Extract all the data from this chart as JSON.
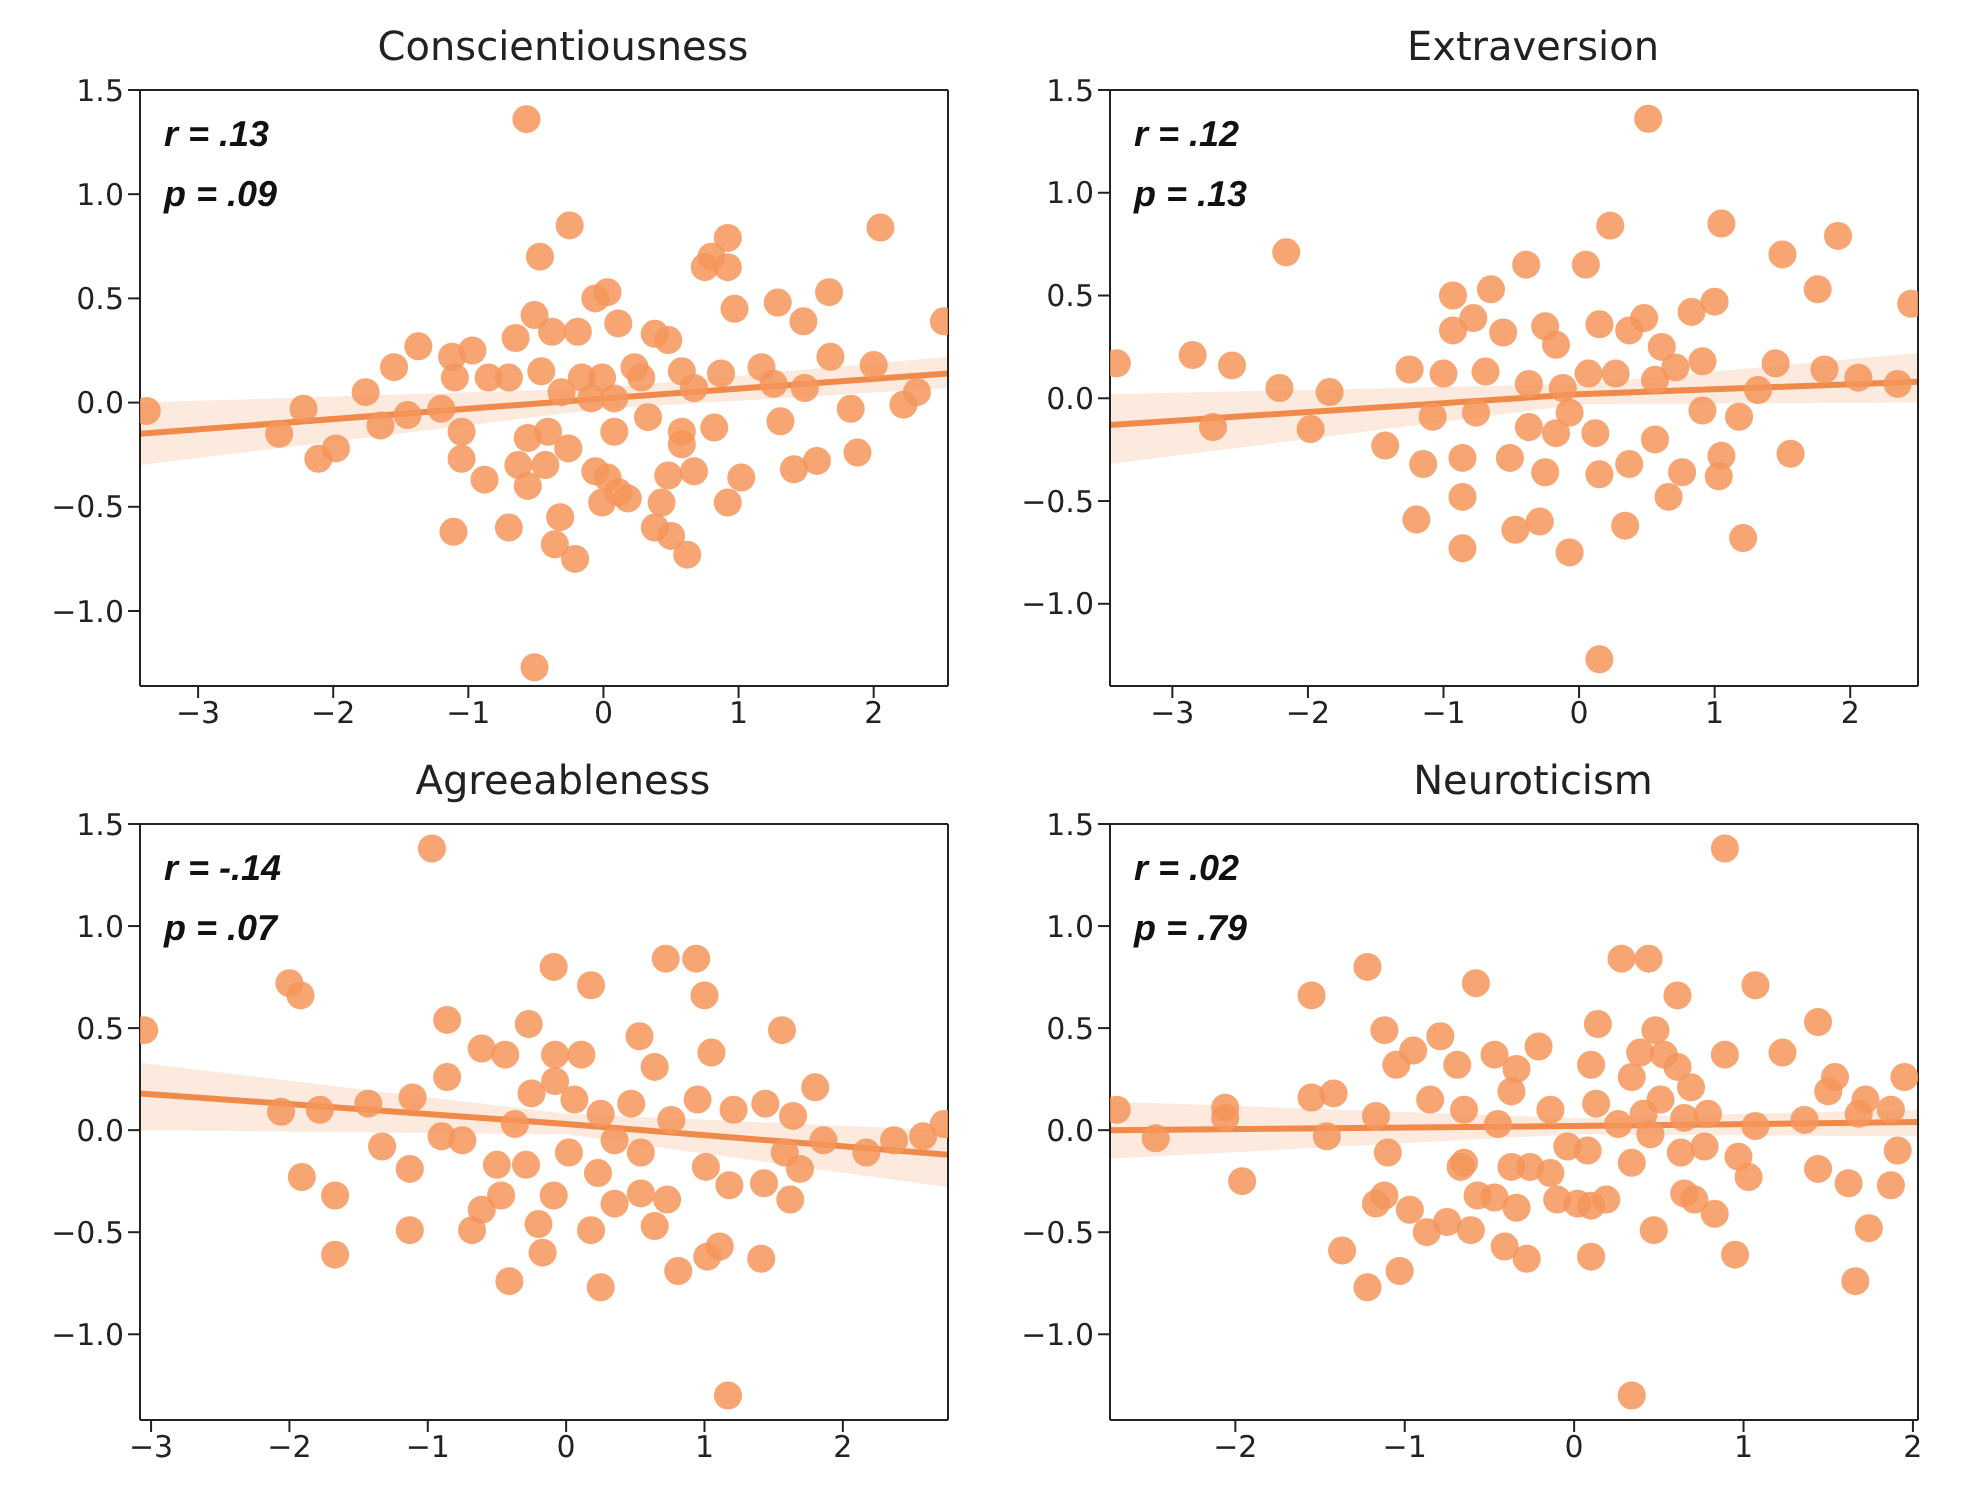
{
  "chart_data": [
    {
      "type": "scatter",
      "title": "Conscientiousness",
      "annotations": [
        "r = .13",
        "p = .09"
      ],
      "xlim": [
        -3.43,
        2.55
      ],
      "ylim": [
        -1.36,
        1.5
      ],
      "xticks": [
        -3,
        -2,
        -1,
        0,
        1,
        2
      ],
      "yticks": [
        {
          "value": -1,
          "label": "−1.0"
        },
        -0.5,
        {
          "value": 0,
          "label": "0.0"
        },
        0.5,
        {
          "value": 1,
          "label": "1.0"
        },
        1.5
      ],
      "series": [
        {
          "marker": "circle",
          "color": "#f4955a",
          "x": [
            -0.57,
            -0.51,
            -0.25,
            -0.47,
            2.05,
            0.92,
            0.8,
            0.75,
            0.92,
            2.52,
            1.67,
            1.29,
            0.97,
            1.48,
            -0.06,
            0.03,
            0.11,
            -0.51,
            -0.38,
            -0.19,
            0.38,
            0.48,
            -1.37,
            -1.55,
            -1.76,
            -2.22,
            -2.4,
            -2.11,
            -1.98,
            -1.65,
            -1.45,
            -3.38,
            -1.12,
            -0.97,
            -1.1,
            -0.85,
            -0.65,
            -0.7,
            -0.46,
            -0.16,
            -0.01,
            0.08,
            0.23,
            0.58,
            0.67,
            0.87,
            1.17,
            1.26,
            1.49,
            1.68,
            2.0,
            1.83,
            2.22,
            2.32,
            1.88,
            1.58,
            1.41,
            1.31,
            1.02,
            0.92,
            0.82,
            0.58,
            0.58,
            0.67,
            0.48,
            0.43,
            0.38,
            0.5,
            0.62,
            0.33,
            0.08,
            -0.06,
            0.03,
            0.11,
            -0.01,
            0.18,
            -0.26,
            -0.41,
            -0.56,
            -0.63,
            -0.56,
            -0.43,
            -0.88,
            -1.05,
            -1.05,
            -1.11,
            -0.7,
            -0.32,
            -0.36,
            -0.21,
            -1.2,
            -0.31,
            -0.09,
            0.28
          ],
          "values": [
            1.36,
            -1.27,
            0.85,
            0.7,
            0.84,
            0.79,
            0.7,
            0.65,
            0.65,
            0.39,
            0.53,
            0.48,
            0.45,
            0.39,
            0.5,
            0.53,
            0.38,
            0.42,
            0.34,
            0.34,
            0.33,
            0.3,
            0.27,
            0.17,
            0.05,
            -0.03,
            -0.15,
            -0.27,
            -0.22,
            -0.11,
            -0.06,
            -0.04,
            0.22,
            0.25,
            0.12,
            0.12,
            0.31,
            0.12,
            0.15,
            0.12,
            0.12,
            0.02,
            0.17,
            0.15,
            0.07,
            0.14,
            0.17,
            0.09,
            0.07,
            0.22,
            0.18,
            -0.03,
            -0.01,
            0.05,
            -0.24,
            -0.28,
            -0.32,
            -0.09,
            -0.36,
            -0.48,
            -0.12,
            -0.14,
            -0.2,
            -0.33,
            -0.35,
            -0.48,
            -0.6,
            -0.64,
            -0.73,
            -0.07,
            -0.14,
            -0.33,
            -0.36,
            -0.43,
            -0.48,
            -0.46,
            -0.22,
            -0.14,
            -0.17,
            -0.3,
            -0.4,
            -0.3,
            -0.37,
            -0.14,
            -0.27,
            -0.62,
            -0.6,
            -0.55,
            -0.68,
            -0.75,
            -0.03,
            0.05,
            0.02,
            0.12
          ]
        },
        {
          "type": "line",
          "color": "#f08a4b",
          "x": [
            -3.43,
            0,
            2.55
          ],
          "values": [
            -0.15,
            0.02,
            0.14
          ],
          "lower": [
            -0.3,
            -0.03,
            0.07
          ],
          "upper": [
            0.0,
            0.07,
            0.22
          ]
        }
      ]
    },
    {
      "type": "scatter",
      "title": "Extraversion",
      "annotations": [
        "r = .12",
        "p = .13"
      ],
      "xlim": [
        -3.46,
        2.5
      ],
      "ylim": [
        -1.4,
        1.5
      ],
      "xticks": [
        -3,
        -2,
        -1,
        0,
        1,
        2
      ],
      "yticks": [
        {
          "value": -1,
          "label": "−1.0"
        },
        -0.5,
        {
          "value": 0,
          "label": "0.0"
        },
        0.5,
        {
          "value": 1,
          "label": "1.0"
        },
        1.5
      ],
      "series": [
        {
          "marker": "circle",
          "color": "#f4955a",
          "x": [
            0.51,
            0.15,
            -3.41,
            -2.85,
            -2.56,
            -2.16,
            -2.7,
            -2.21,
            -1.84,
            -1.98,
            -1.43,
            -1.25,
            -1.15,
            -1.2,
            -0.86,
            -0.86,
            -0.86,
            -0.93,
            -0.93,
            -0.78,
            -0.65,
            -0.56,
            -0.39,
            0.05,
            0.23,
            1.05,
            1.5,
            1.91,
            1.76,
            2.45,
            1.0,
            0.83,
            0.48,
            0.37,
            0.15,
            -0.25,
            -0.17,
            -0.69,
            -1.0,
            -1.08,
            -0.76,
            -0.51,
            -0.47,
            -0.29,
            -0.25,
            -0.07,
            0.15,
            0.34,
            0.37,
            0.56,
            0.66,
            0.76,
            1.03,
            1.05,
            1.21,
            1.56,
            1.18,
            1.45,
            1.81,
            2.06,
            2.35,
            1.32,
            0.91,
            0.71,
            0.56,
            0.27,
            0.07,
            -0.12,
            -0.37,
            -0.07,
            0.12,
            -0.17,
            -0.37,
            0.91,
            0.61
          ],
          "values": [
            1.36,
            -1.27,
            0.17,
            0.21,
            0.16,
            0.71,
            -0.14,
            0.05,
            0.03,
            -0.15,
            -0.23,
            0.14,
            -0.32,
            -0.59,
            -0.73,
            -0.48,
            -0.29,
            0.5,
            0.33,
            0.39,
            0.53,
            0.32,
            0.65,
            0.65,
            0.84,
            0.85,
            0.7,
            0.79,
            0.53,
            0.46,
            0.47,
            0.42,
            0.39,
            0.33,
            0.36,
            0.35,
            0.26,
            0.13,
            0.12,
            -0.09,
            -0.07,
            -0.29,
            -0.64,
            -0.6,
            -0.36,
            -0.75,
            -0.37,
            -0.62,
            -0.32,
            -0.2,
            -0.48,
            -0.36,
            -0.38,
            -0.28,
            -0.68,
            -0.27,
            -0.09,
            0.17,
            0.14,
            0.1,
            0.07,
            0.04,
            0.18,
            0.15,
            0.09,
            0.12,
            0.12,
            0.05,
            0.07,
            -0.07,
            -0.17,
            -0.17,
            -0.14,
            -0.06,
            0.25
          ]
        },
        {
          "type": "line",
          "color": "#f08a4b",
          "x": [
            -3.46,
            0,
            2.5
          ],
          "values": [
            -0.13,
            0.02,
            0.08
          ],
          "lower": [
            -0.32,
            -0.03,
            -0.02
          ],
          "upper": [
            0.02,
            0.07,
            0.22
          ]
        }
      ]
    },
    {
      "type": "scatter",
      "title": "Agreeableness",
      "annotations": [
        "r = -.14",
        "p = .07"
      ],
      "xlim": [
        -3.08,
        2.76
      ],
      "ylim": [
        -1.42,
        1.5
      ],
      "xticks": [
        -3,
        -2,
        -1,
        0,
        1,
        2
      ],
      "yticks": [
        {
          "value": -1,
          "label": "−1.0"
        },
        -0.5,
        {
          "value": 0,
          "label": "0.0"
        },
        0.5,
        {
          "value": 1,
          "label": "1.0"
        },
        1.5
      ],
      "series": [
        {
          "marker": "circle",
          "color": "#f4955a",
          "x": [
            -0.97,
            1.17,
            -3.05,
            -2.0,
            -1.92,
            -2.06,
            -1.78,
            -1.91,
            -1.67,
            -1.67,
            -1.13,
            -1.33,
            -1.13,
            -1.43,
            -1.11,
            -0.86,
            -0.86,
            -0.61,
            -0.44,
            -0.27,
            -0.09,
            0.18,
            0.53,
            0.64,
            0.72,
            0.94,
            1.0,
            1.05,
            1.56,
            1.8,
            1.64,
            0.95,
            1.21,
            1.44,
            1.86,
            2.17,
            2.37,
            2.58,
            2.73,
            1.58,
            1.69,
            1.62,
            1.43,
            1.18,
            1.01,
            1.11,
            1.02,
            0.81,
            1.41,
            0.64,
            0.73,
            0.54,
            0.35,
            0.23,
            0.18,
            0.25,
            0.02,
            -0.09,
            -0.2,
            -0.17,
            -0.41,
            -0.68,
            -0.47,
            -0.5,
            -0.29,
            -0.61,
            -0.9,
            -0.75,
            -0.37,
            -0.25,
            -0.08,
            0.06,
            0.25,
            0.47,
            0.76,
            0.11,
            -0.08,
            0.35,
            0.54
          ],
          "values": [
            1.38,
            -1.3,
            0.49,
            0.72,
            0.66,
            0.09,
            0.1,
            -0.23,
            -0.32,
            -0.61,
            -0.49,
            -0.08,
            -0.19,
            0.13,
            0.16,
            0.54,
            0.26,
            0.4,
            0.37,
            0.52,
            0.8,
            0.71,
            0.46,
            0.31,
            0.84,
            0.84,
            0.66,
            0.38,
            0.49,
            0.21,
            0.07,
            0.15,
            0.1,
            0.13,
            -0.05,
            -0.11,
            -0.05,
            -0.03,
            0.03,
            -0.11,
            -0.19,
            -0.34,
            -0.26,
            -0.27,
            -0.18,
            -0.57,
            -0.62,
            -0.69,
            -0.63,
            -0.47,
            -0.34,
            -0.31,
            -0.36,
            -0.21,
            -0.49,
            -0.77,
            -0.11,
            -0.32,
            -0.46,
            -0.6,
            -0.74,
            -0.49,
            -0.32,
            -0.17,
            -0.17,
            -0.39,
            -0.03,
            -0.05,
            0.03,
            0.18,
            0.24,
            0.15,
            0.08,
            0.13,
            0.05,
            0.37,
            0.37,
            -0.05,
            -0.11
          ]
        },
        {
          "type": "line",
          "color": "#f08a4b",
          "x": [
            -3.08,
            0,
            2.76
          ],
          "values": [
            0.18,
            0.03,
            -0.12
          ],
          "lower": [
            0.0,
            -0.02,
            -0.28
          ],
          "upper": [
            0.33,
            0.08,
            0.0
          ]
        }
      ]
    },
    {
      "type": "scatter",
      "title": "Neuroticism",
      "annotations": [
        "r = .02",
        "p = .79"
      ],
      "xlim": [
        -2.74,
        2.03
      ],
      "ylim": [
        -1.42,
        1.5
      ],
      "xticks": [
        -2,
        -1,
        0,
        1,
        2
      ],
      "yticks": [
        {
          "value": -1,
          "label": "−1.0"
        },
        -0.5,
        {
          "value": 0,
          "label": "0.0"
        },
        0.5,
        {
          "value": 1,
          "label": "1.0"
        },
        1.5
      ],
      "series": [
        {
          "marker": "circle",
          "color": "#f4955a",
          "x": [
            0.89,
            0.34,
            -2.7,
            -2.47,
            -2.06,
            -2.06,
            -1.96,
            -1.55,
            -1.55,
            -1.42,
            -1.46,
            -1.37,
            -1.22,
            -1.22,
            -1.03,
            -1.12,
            -1.17,
            -1.1,
            -1.12,
            -1.17,
            -0.97,
            -0.87,
            -0.75,
            -0.61,
            -1.05,
            -0.95,
            -0.79,
            -0.58,
            -0.69,
            -0.85,
            -0.65,
            -0.47,
            -0.34,
            -0.21,
            -0.37,
            -0.14,
            -0.45,
            -0.65,
            -0.67,
            -0.57,
            -0.47,
            -0.34,
            -0.41,
            -0.28,
            -0.37,
            -0.26,
            -0.14,
            -0.04,
            0.08,
            -0.1,
            0.02,
            0.1,
            0.19,
            0.1,
            0.34,
            0.1,
            0.14,
            0.13,
            0.26,
            0.28,
            0.44,
            0.61,
            0.48,
            0.39,
            0.34,
            0.53,
            0.61,
            0.41,
            0.51,
            0.65,
            0.69,
            0.79,
            0.45,
            0.63,
            0.77,
            0.65,
            0.71,
            0.83,
            0.47,
            0.95,
            0.97,
            1.03,
            0.89,
            1.07,
            1.07,
            1.23,
            1.36,
            1.44,
            1.44,
            1.54,
            1.5,
            1.62,
            1.66,
            1.74,
            1.68,
            1.72,
            1.87,
            1.91,
            1.87,
            1.95
          ],
          "values": [
            1.38,
            -1.3,
            0.1,
            -0.04,
            0.11,
            0.06,
            -0.25,
            0.66,
            0.16,
            0.18,
            -0.03,
            -0.59,
            0.8,
            -0.77,
            -0.69,
            0.49,
            0.07,
            -0.11,
            -0.32,
            -0.36,
            -0.39,
            -0.5,
            -0.45,
            -0.49,
            0.32,
            0.39,
            0.46,
            0.72,
            0.32,
            0.15,
            0.1,
            0.37,
            0.3,
            0.41,
            0.19,
            0.1,
            0.03,
            -0.16,
            -0.18,
            -0.32,
            -0.33,
            -0.38,
            -0.57,
            -0.63,
            -0.18,
            -0.18,
            -0.21,
            -0.08,
            -0.1,
            -0.34,
            -0.36,
            -0.37,
            -0.34,
            -0.62,
            -0.16,
            0.32,
            0.52,
            0.13,
            0.03,
            0.84,
            0.84,
            0.66,
            0.49,
            0.38,
            0.26,
            0.37,
            0.31,
            0.08,
            0.15,
            0.06,
            0.21,
            0.08,
            -0.02,
            -0.11,
            -0.08,
            -0.31,
            -0.34,
            -0.41,
            -0.49,
            -0.61,
            -0.13,
            -0.23,
            0.37,
            0.71,
            0.02,
            0.38,
            0.05,
            0.53,
            -0.19,
            0.26,
            0.19,
            -0.26,
            -0.74,
            -0.48,
            0.08,
            0.15,
            0.1,
            -0.1,
            -0.27,
            0.26
          ]
        },
        {
          "type": "line",
          "color": "#f08a4b",
          "x": [
            -2.74,
            0,
            2.03
          ],
          "values": [
            0.0,
            0.02,
            0.04
          ],
          "lower": [
            -0.14,
            -0.02,
            -0.03
          ],
          "upper": [
            0.14,
            0.06,
            0.1
          ]
        }
      ]
    }
  ]
}
